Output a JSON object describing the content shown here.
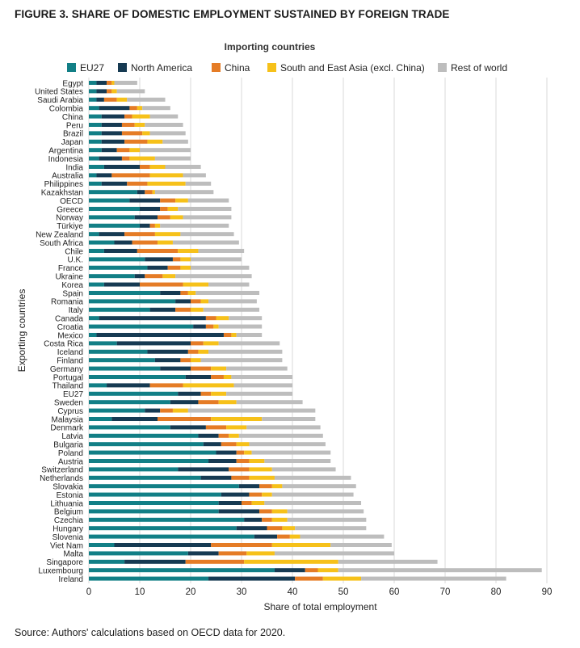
{
  "figure": {
    "title": "FIGURE 3. SHARE OF DOMESTIC EMPLOYMENT SUSTAINED BY FOREIGN TRADE",
    "source": "Source: Authors' calculations based on OECD data for 2020."
  },
  "chart_data": {
    "type": "bar",
    "orientation": "horizontal",
    "stacked": true,
    "title": "Importing countries",
    "xlabel": "Share of total employment",
    "ylabel": "Exporting countries",
    "xlim": [
      0,
      90
    ],
    "xticks": [
      "0",
      "10",
      "20",
      "30",
      "40",
      "50",
      "60",
      "70",
      "80",
      "90"
    ],
    "grid": "vertical",
    "legend_position": "top",
    "categories": [
      "Egypt",
      "United States",
      "Saudi Arabia",
      "Colombia",
      "China",
      "Peru",
      "Brazil",
      "Japan",
      "Argentina",
      "Indonesia",
      "India",
      "Australia",
      "Philippines",
      "Kazakhstan",
      "OECD",
      "Greece",
      "Norway",
      "Türkiye",
      "New Zealand",
      "South Africa",
      "Chile",
      "U.K.",
      "France",
      "Ukraine",
      "Korea",
      "Spain",
      "Romania",
      "Italy",
      "Canada",
      "Croatia",
      "Mexico",
      "Costa Rica",
      "Iceland",
      "Finland",
      "Germany",
      "Portugal",
      "Thailand",
      "EU27",
      "Sweden",
      "Cyprus",
      "Malaysia",
      "Denmark",
      "Latvia",
      "Bulgaria",
      "Poland",
      "Austria",
      "Switzerland",
      "Netherlands",
      "Slovakia",
      "Estonia",
      "Lithuania",
      "Belgium",
      "Czechia",
      "Hungary",
      "Slovenia",
      "Viet Nam",
      "Malta",
      "Singapore",
      "Luxembourg",
      "Ireland"
    ],
    "series": [
      {
        "name": "EU27",
        "color": "#127f86",
        "values": [
          1.5,
          1.5,
          1.5,
          2.0,
          2.5,
          2.5,
          2.5,
          2.5,
          2.5,
          2.0,
          3.0,
          1.5,
          2.5,
          9.5,
          8.0,
          10.0,
          9.0,
          10.0,
          2.0,
          5.0,
          3.0,
          11.0,
          11.5,
          9.0,
          3.0,
          14.0,
          17.0,
          12.0,
          2.0,
          20.5,
          1.5,
          5.5,
          11.5,
          13.0,
          14.0,
          19.0,
          3.5,
          17.5,
          16.0,
          11.0,
          4.5,
          16.0,
          21.5,
          22.5,
          25.0,
          23.5,
          17.5,
          22.0,
          29.5,
          26.0,
          25.5,
          25.5,
          30.5,
          29.0,
          32.5,
          5.0,
          19.5,
          7.0,
          36.5,
          23.5
        ]
      },
      {
        "name": "North America",
        "color": "#163a52",
        "values": [
          2.0,
          2.0,
          1.5,
          6.0,
          4.5,
          4.0,
          4.0,
          4.5,
          3.0,
          4.5,
          7.0,
          3.0,
          5.0,
          1.5,
          6.0,
          4.0,
          4.5,
          2.0,
          5.0,
          3.5,
          6.5,
          5.5,
          4.0,
          2.0,
          7.0,
          4.0,
          3.0,
          5.0,
          21.0,
          2.5,
          25.0,
          14.5,
          8.0,
          5.0,
          6.0,
          5.0,
          8.5,
          4.5,
          5.5,
          3.0,
          9.0,
          7.0,
          4.0,
          3.5,
          4.0,
          5.5,
          10.0,
          6.0,
          4.0,
          5.5,
          4.5,
          8.0,
          3.5,
          6.0,
          4.5,
          19.0,
          6.0,
          12.0,
          6.0,
          17.0
        ]
      },
      {
        "name": "China",
        "color": "#e57c26",
        "values": [
          1.0,
          1.0,
          2.5,
          1.5,
          1.5,
          2.5,
          4.0,
          4.5,
          2.5,
          1.5,
          2.0,
          7.5,
          4.0,
          1.5,
          3.0,
          1.5,
          2.5,
          1.0,
          6.0,
          5.0,
          8.0,
          1.5,
          2.5,
          3.5,
          8.5,
          1.5,
          2.0,
          3.0,
          2.0,
          1.5,
          1.5,
          2.5,
          2.0,
          2.0,
          4.0,
          2.5,
          6.5,
          2.0,
          4.0,
          2.5,
          10.5,
          4.0,
          2.0,
          3.0,
          1.5,
          2.5,
          4.0,
          3.5,
          2.5,
          2.5,
          2.0,
          2.5,
          2.0,
          3.0,
          2.5,
          12.0,
          5.5,
          11.5,
          2.5,
          5.5
        ]
      },
      {
        "name": "South and East Asia (excl. China)",
        "color": "#f6c11a",
        "values": [
          0.5,
          1.0,
          2.0,
          1.0,
          3.5,
          2.0,
          1.5,
          3.0,
          2.0,
          5.0,
          3.0,
          6.5,
          7.5,
          0.5,
          2.5,
          2.0,
          2.5,
          1.0,
          5.0,
          3.0,
          4.0,
          2.0,
          2.0,
          2.5,
          5.0,
          1.5,
          1.5,
          2.5,
          2.5,
          1.0,
          1.0,
          3.0,
          2.0,
          2.0,
          3.0,
          1.5,
          10.0,
          3.0,
          3.5,
          3.0,
          10.0,
          4.0,
          2.0,
          2.5,
          1.5,
          3.0,
          4.5,
          5.0,
          2.0,
          2.0,
          2.5,
          3.0,
          3.0,
          2.5,
          2.0,
          11.5,
          5.5,
          18.5,
          4.0,
          7.5
        ]
      },
      {
        "name": "Rest of world",
        "color": "#bdbdbd",
        "values": [
          4.5,
          5.5,
          7.5,
          5.5,
          5.5,
          7.5,
          7.0,
          5.0,
          10.0,
          7.0,
          7.0,
          4.5,
          5.0,
          11.5,
          8.0,
          10.5,
          9.5,
          13.5,
          10.5,
          13.0,
          9.0,
          10.0,
          11.5,
          15.0,
          8.0,
          12.5,
          9.5,
          11.0,
          6.5,
          8.5,
          5.0,
          12.0,
          14.5,
          16.0,
          12.0,
          12.0,
          11.5,
          13.0,
          13.0,
          25.0,
          10.5,
          14.5,
          16.5,
          15.0,
          15.5,
          13.0,
          12.5,
          15.0,
          14.5,
          16.0,
          19.0,
          15.0,
          15.5,
          14.0,
          16.5,
          12.0,
          23.5,
          19.5,
          40.0,
          28.5
        ]
      }
    ]
  }
}
